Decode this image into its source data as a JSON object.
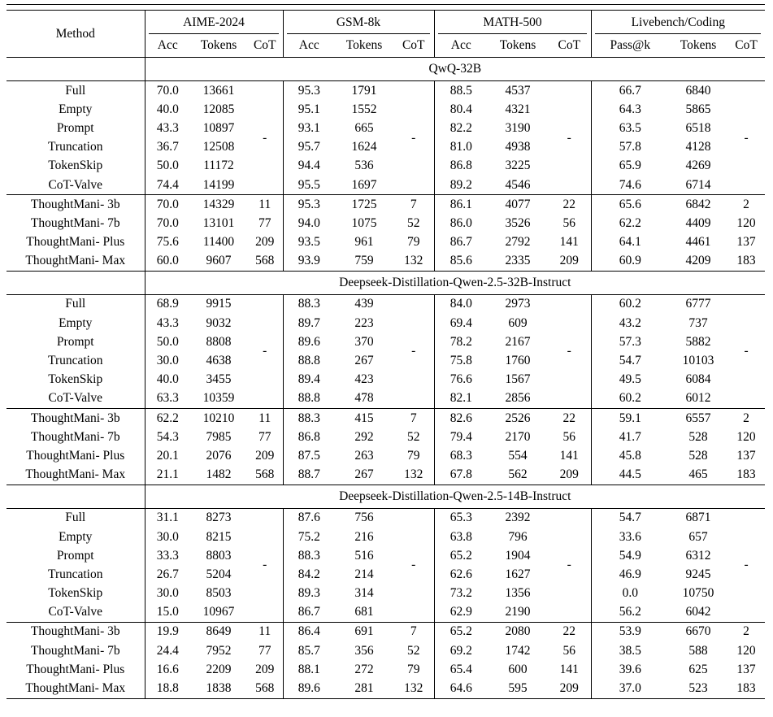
{
  "table": {
    "method_header": "Method",
    "cot_placeholder": "-",
    "groups": [
      {
        "label": "AIME-2024",
        "cols": [
          "Acc",
          "Tokens",
          "CoT"
        ]
      },
      {
        "label": "GSM-8k",
        "cols": [
          "Acc",
          "Tokens",
          "CoT"
        ]
      },
      {
        "label": "MATH-500",
        "cols": [
          "Acc",
          "Tokens",
          "CoT"
        ]
      },
      {
        "label": "Livebench/Coding",
        "cols": [
          "Pass@k",
          "Tokens",
          "CoT"
        ]
      }
    ],
    "sections": [
      {
        "model": "QwQ-32B",
        "baseline_rows": [
          {
            "method": "Full",
            "aime": [
              "70.0",
              "13661"
            ],
            "gsm": [
              "95.3",
              "1791"
            ],
            "math": [
              "88.5",
              "4537"
            ],
            "lb": [
              "66.7",
              "6840"
            ]
          },
          {
            "method": "Empty",
            "aime": [
              "40.0",
              "12085"
            ],
            "gsm": [
              "95.1",
              "1552"
            ],
            "math": [
              "80.4",
              "4321"
            ],
            "lb": [
              "64.3",
              "5865"
            ]
          },
          {
            "method": "Prompt",
            "aime": [
              "43.3",
              "10897"
            ],
            "gsm": [
              "93.1",
              "665"
            ],
            "math": [
              "82.2",
              "3190"
            ],
            "lb": [
              "63.5",
              "6518"
            ]
          },
          {
            "method": "Truncation",
            "aime": [
              "36.7",
              "12508"
            ],
            "gsm": [
              "95.7",
              "1624"
            ],
            "math": [
              "81.0",
              "4938"
            ],
            "lb": [
              "57.8",
              "4128"
            ]
          },
          {
            "method": "TokenSkip",
            "aime": [
              "50.0",
              "11172"
            ],
            "gsm": [
              "94.4",
              "536"
            ],
            "math": [
              "86.8",
              "3225"
            ],
            "lb": [
              "65.9",
              "4269"
            ]
          },
          {
            "method": "CoT-Valve",
            "aime": [
              "74.4",
              "14199"
            ],
            "gsm": [
              "95.5",
              "1697"
            ],
            "math": [
              "89.2",
              "4546"
            ],
            "lb": [
              "74.6",
              "6714"
            ]
          }
        ],
        "thoughtmani_rows": [
          {
            "method": "ThoughtMani- 3b",
            "aime": [
              "70.0",
              "14329",
              "11"
            ],
            "gsm": [
              "95.3",
              "1725",
              "7"
            ],
            "math": [
              "86.1",
              "4077",
              "22"
            ],
            "lb": [
              "65.6",
              "6842",
              "2"
            ]
          },
          {
            "method": "ThoughtMani- 7b",
            "aime": [
              "70.0",
              "13101",
              "77"
            ],
            "gsm": [
              "94.0",
              "1075",
              "52"
            ],
            "math": [
              "86.0",
              "3526",
              "56"
            ],
            "lb": [
              "62.2",
              "4409",
              "120"
            ]
          },
          {
            "method": "ThoughtMani- Plus",
            "aime": [
              "75.6",
              "11400",
              "209"
            ],
            "gsm": [
              "93.5",
              "961",
              "79"
            ],
            "math": [
              "86.7",
              "2792",
              "141"
            ],
            "lb": [
              "64.1",
              "4461",
              "137"
            ]
          },
          {
            "method": "ThoughtMani- Max",
            "aime": [
              "60.0",
              "9607",
              "568"
            ],
            "gsm": [
              "93.9",
              "759",
              "132"
            ],
            "math": [
              "85.6",
              "2335",
              "209"
            ],
            "lb": [
              "60.9",
              "4209",
              "183"
            ]
          }
        ]
      },
      {
        "model": "Deepseek-Distillation-Qwen-2.5-32B-Instruct",
        "baseline_rows": [
          {
            "method": "Full",
            "aime": [
              "68.9",
              "9915"
            ],
            "gsm": [
              "88.3",
              "439"
            ],
            "math": [
              "84.0",
              "2973"
            ],
            "lb": [
              "60.2",
              "6777"
            ]
          },
          {
            "method": "Empty",
            "aime": [
              "43.3",
              "9032"
            ],
            "gsm": [
              "89.7",
              "223"
            ],
            "math": [
              "69.4",
              "609"
            ],
            "lb": [
              "43.2",
              "737"
            ]
          },
          {
            "method": "Prompt",
            "aime": [
              "50.0",
              "8808"
            ],
            "gsm": [
              "89.6",
              "370"
            ],
            "math": [
              "78.2",
              "2167"
            ],
            "lb": [
              "57.3",
              "5882"
            ]
          },
          {
            "method": "Truncation",
            "aime": [
              "30.0",
              "4638"
            ],
            "gsm": [
              "88.8",
              "267"
            ],
            "math": [
              "75.8",
              "1760"
            ],
            "lb": [
              "54.7",
              "10103"
            ]
          },
          {
            "method": "TokenSkip",
            "aime": [
              "40.0",
              "3455"
            ],
            "gsm": [
              "89.4",
              "423"
            ],
            "math": [
              "76.6",
              "1567"
            ],
            "lb": [
              "49.5",
              "6084"
            ]
          },
          {
            "method": "CoT-Valve",
            "aime": [
              "63.3",
              "10359"
            ],
            "gsm": [
              "88.8",
              "478"
            ],
            "math": [
              "82.1",
              "2856"
            ],
            "lb": [
              "60.2",
              "6012"
            ]
          }
        ],
        "thoughtmani_rows": [
          {
            "method": "ThoughtMani- 3b",
            "aime": [
              "62.2",
              "10210",
              "11"
            ],
            "gsm": [
              "88.3",
              "415",
              "7"
            ],
            "math": [
              "82.6",
              "2526",
              "22"
            ],
            "lb": [
              "59.1",
              "6557",
              "2"
            ]
          },
          {
            "method": "ThoughtMani- 7b",
            "aime": [
              "54.3",
              "7985",
              "77"
            ],
            "gsm": [
              "86.8",
              "292",
              "52"
            ],
            "math": [
              "79.4",
              "2170",
              "56"
            ],
            "lb": [
              "41.7",
              "528",
              "120"
            ]
          },
          {
            "method": "ThoughtMani- Plus",
            "aime": [
              "20.1",
              "2076",
              "209"
            ],
            "gsm": [
              "87.5",
              "263",
              "79"
            ],
            "math": [
              "68.3",
              "554",
              "141"
            ],
            "lb": [
              "45.8",
              "528",
              "137"
            ]
          },
          {
            "method": "ThoughtMani- Max",
            "aime": [
              "21.1",
              "1482",
              "568"
            ],
            "gsm": [
              "88.7",
              "267",
              "132"
            ],
            "math": [
              "67.8",
              "562",
              "209"
            ],
            "lb": [
              "44.5",
              "465",
              "183"
            ]
          }
        ]
      },
      {
        "model": "Deepseek-Distillation-Qwen-2.5-14B-Instruct",
        "baseline_rows": [
          {
            "method": "Full",
            "aime": [
              "31.1",
              "8273"
            ],
            "gsm": [
              "87.6",
              "756"
            ],
            "math": [
              "65.3",
              "2392"
            ],
            "lb": [
              "54.7",
              "6871"
            ]
          },
          {
            "method": "Empty",
            "aime": [
              "30.0",
              "8215"
            ],
            "gsm": [
              "75.2",
              "216"
            ],
            "math": [
              "63.8",
              "796"
            ],
            "lb": [
              "33.6",
              "657"
            ]
          },
          {
            "method": "Prompt",
            "aime": [
              "33.3",
              "8803"
            ],
            "gsm": [
              "88.3",
              "516"
            ],
            "math": [
              "65.2",
              "1904"
            ],
            "lb": [
              "54.9",
              "6312"
            ]
          },
          {
            "method": "Truncation",
            "aime": [
              "26.7",
              "5204"
            ],
            "gsm": [
              "84.2",
              "214"
            ],
            "math": [
              "62.6",
              "1627"
            ],
            "lb": [
              "46.9",
              "9245"
            ]
          },
          {
            "method": "TokenSkip",
            "aime": [
              "30.0",
              "8503"
            ],
            "gsm": [
              "89.3",
              "314"
            ],
            "math": [
              "73.2",
              "1356"
            ],
            "lb": [
              "0.0",
              "10750"
            ]
          },
          {
            "method": "CoT-Valve",
            "aime": [
              "15.0",
              "10967"
            ],
            "gsm": [
              "86.7",
              "681"
            ],
            "math": [
              "62.9",
              "2190"
            ],
            "lb": [
              "56.2",
              "6042"
            ]
          }
        ],
        "thoughtmani_rows": [
          {
            "method": "ThoughtMani- 3b",
            "aime": [
              "19.9",
              "8649",
              "11"
            ],
            "gsm": [
              "86.4",
              "691",
              "7"
            ],
            "math": [
              "65.2",
              "2080",
              "22"
            ],
            "lb": [
              "53.9",
              "6670",
              "2"
            ]
          },
          {
            "method": "ThoughtMani- 7b",
            "aime": [
              "24.4",
              "7952",
              "77"
            ],
            "gsm": [
              "85.7",
              "356",
              "52"
            ],
            "math": [
              "69.2",
              "1742",
              "56"
            ],
            "lb": [
              "38.5",
              "588",
              "120"
            ]
          },
          {
            "method": "ThoughtMani- Plus",
            "aime": [
              "16.6",
              "2209",
              "209"
            ],
            "gsm": [
              "88.1",
              "272",
              "79"
            ],
            "math": [
              "65.4",
              "600",
              "141"
            ],
            "lb": [
              "39.6",
              "625",
              "137"
            ]
          },
          {
            "method": "ThoughtMani- Max",
            "aime": [
              "18.8",
              "1838",
              "568"
            ],
            "gsm": [
              "89.6",
              "281",
              "132"
            ],
            "math": [
              "64.6",
              "595",
              "209"
            ],
            "lb": [
              "37.0",
              "523",
              "183"
            ]
          }
        ]
      }
    ]
  }
}
